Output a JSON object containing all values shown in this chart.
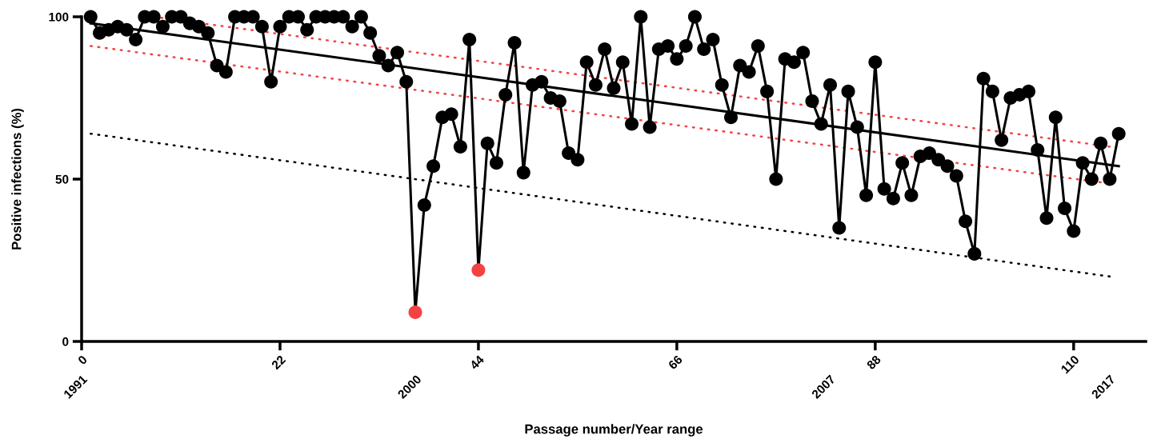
{
  "chart_data": {
    "type": "line",
    "xlabel": "Passage number/Year range",
    "ylabel": "Positive infections (%)",
    "xlim": [
      0,
      118
    ],
    "xticks": [
      0,
      22,
      44,
      66,
      88,
      110
    ],
    "annotations": [
      "1991",
      "2000",
      "2007",
      "2017"
    ],
    "ylim": [
      0,
      100
    ],
    "yticks": [
      0,
      50,
      100
    ],
    "grid": false,
    "series": [
      {
        "type": "line",
        "marker": "circle",
        "line_style": "solid",
        "color": "#000000",
        "x": [
          1,
          2,
          3,
          4,
          5,
          6,
          7,
          8,
          9,
          10,
          11,
          12,
          13,
          14,
          15,
          16,
          17,
          18,
          19,
          20,
          21,
          22,
          23,
          24,
          25,
          26,
          27,
          28,
          29,
          30,
          31,
          32,
          33,
          34,
          35,
          36,
          37,
          38,
          39,
          40,
          41,
          42,
          43,
          44,
          45,
          46,
          47,
          48,
          49,
          50,
          51,
          52,
          53,
          54,
          55,
          56,
          57,
          58,
          59,
          60,
          61,
          62,
          63,
          64,
          65,
          66,
          67,
          68,
          69,
          70,
          71,
          72,
          73,
          74,
          75,
          76,
          77,
          78,
          79,
          80,
          81,
          82,
          83,
          84,
          85,
          86,
          87,
          88,
          89,
          90,
          91,
          92,
          93,
          94,
          95,
          96,
          97,
          98,
          99,
          100,
          101,
          102,
          103,
          104,
          105,
          106,
          107,
          108,
          109,
          110,
          111,
          112,
          113,
          114,
          115
        ],
        "values": [
          100,
          95,
          96,
          97,
          96,
          93,
          100,
          100,
          97,
          100,
          100,
          98,
          97,
          95,
          85,
          83,
          100,
          100,
          100,
          97,
          80,
          97,
          100,
          100,
          96,
          100,
          100,
          100,
          100,
          97,
          100,
          95,
          88,
          85,
          89,
          80,
          9,
          42,
          54,
          69,
          70,
          60,
          93,
          22,
          61,
          55,
          76,
          92,
          52,
          79,
          80,
          75,
          74,
          58,
          56,
          86,
          79,
          90,
          78,
          86,
          67,
          100,
          66,
          90,
          91,
          87,
          91,
          100,
          90,
          93,
          79,
          69,
          85,
          83,
          91,
          77,
          50,
          87,
          86,
          89,
          74,
          67,
          79,
          35,
          77,
          66,
          45,
          86,
          47,
          44,
          55,
          45,
          57,
          58,
          56,
          54,
          51,
          37,
          27,
          81,
          77,
          62,
          75,
          76,
          77,
          59,
          38,
          69,
          41,
          34,
          55,
          50,
          61,
          50,
          64
        ],
        "colors": [
          "#000000",
          "#000000",
          "#000000",
          "#000000",
          "#000000",
          "#000000",
          "#000000",
          "#000000",
          "#000000",
          "#000000",
          "#000000",
          "#000000",
          "#000000",
          "#000000",
          "#000000",
          "#000000",
          "#000000",
          "#000000",
          "#000000",
          "#000000",
          "#000000",
          "#000000",
          "#000000",
          "#000000",
          "#000000",
          "#000000",
          "#000000",
          "#000000",
          "#000000",
          "#000000",
          "#000000",
          "#000000",
          "#000000",
          "#000000",
          "#000000",
          "#000000",
          "#f44242",
          "#000000",
          "#000000",
          "#000000",
          "#000000",
          "#000000",
          "#000000",
          "#f44242",
          "#000000",
          "#000000",
          "#000000",
          "#000000",
          "#000000",
          "#000000",
          "#000000",
          "#000000",
          "#000000",
          "#000000",
          "#000000",
          "#000000",
          "#000000",
          "#000000",
          "#000000",
          "#000000",
          "#000000",
          "#000000",
          "#000000",
          "#000000",
          "#000000",
          "#000000",
          "#000000",
          "#000000",
          "#000000",
          "#000000",
          "#000000",
          "#000000",
          "#000000",
          "#000000",
          "#000000",
          "#000000",
          "#000000",
          "#000000",
          "#000000",
          "#000000",
          "#000000",
          "#000000",
          "#000000",
          "#000000",
          "#000000",
          "#000000",
          "#000000",
          "#000000",
          "#000000",
          "#000000",
          "#000000",
          "#000000",
          "#000000",
          "#000000",
          "#000000",
          "#000000",
          "#000000",
          "#000000",
          "#000000",
          "#000000",
          "#000000",
          "#000000",
          "#000000",
          "#000000",
          "#000000",
          "#000000",
          "#000000",
          "#000000",
          "#000000",
          "#000000",
          "#000000",
          "#000000",
          "#000000",
          "#000000",
          "#000000"
        ]
      },
      {
        "marker": "none",
        "line_style": "solid",
        "color": "#000000",
        "x": [
          1,
          115
        ],
        "values": [
          98,
          54
        ]
      },
      {
        "marker": "none",
        "line_style": "dotted",
        "color": "#f44242",
        "x": [
          8,
          114
        ],
        "values": [
          100,
          60
        ]
      },
      {
        "marker": "none",
        "line_style": "dotted",
        "color": "#f44242",
        "x": [
          1,
          113
        ],
        "values": [
          91,
          49
        ]
      },
      {
        "marker": "none",
        "line_style": "dotted",
        "color": "#000000",
        "x": [
          1,
          114
        ],
        "values": [
          64,
          20
        ]
      }
    ]
  }
}
